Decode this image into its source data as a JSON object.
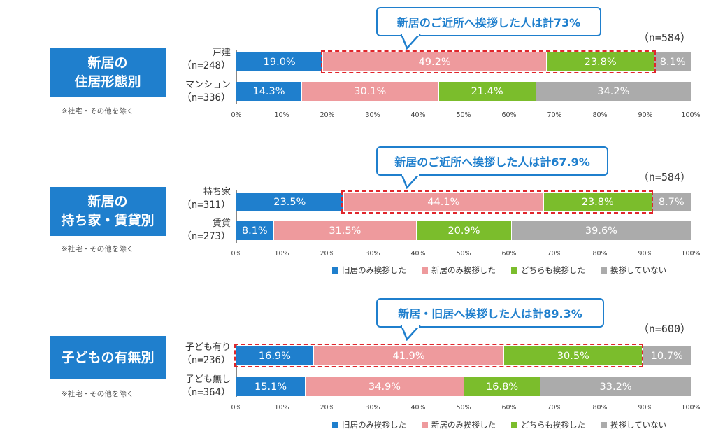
{
  "colors": {
    "old_only": "#1f7fcd",
    "new_only": "#ee9a9d",
    "both": "#7bbd2c",
    "none": "#ababab",
    "callout_border": "#1f7fcd",
    "highlight_dash": "#e0262c"
  },
  "legend": [
    "旧居のみ挨拶した",
    "新居のみ挨拶した",
    "どちらも挨拶した",
    "挨拶していない"
  ],
  "axis_ticks": [
    "0%",
    "10%",
    "20%",
    "30%",
    "40%",
    "50%",
    "60%",
    "70%",
    "80%",
    "90%",
    "100%"
  ],
  "chart_data": [
    {
      "type": "bar",
      "orientation": "horizontal-stacked",
      "title_lines": [
        "新居の",
        "住居形態別"
      ],
      "note": "※社宅・その他を除く",
      "n_total": "（n=584）",
      "callout": "新居のご近所へ挨拶した人は計73%",
      "categories": [
        {
          "name": "戸建",
          "n": "（n=248）"
        },
        {
          "name": "マンション",
          "n": "（n=336）"
        }
      ],
      "series": [
        {
          "name": "旧居のみ挨拶した",
          "values": [
            19.0,
            14.3
          ],
          "labels": [
            "19.0%",
            "14.3%"
          ]
        },
        {
          "name": "新居のみ挨拶した",
          "values": [
            49.2,
            30.1
          ],
          "labels": [
            "49.2%",
            "30.1%"
          ]
        },
        {
          "name": "どちらも挨拶した",
          "values": [
            23.8,
            21.4
          ],
          "labels": [
            "23.8%",
            "21.4%"
          ]
        },
        {
          "name": "挨拶していない",
          "values": [
            8.1,
            34.2
          ],
          "labels": [
            "8.1%",
            "34.2%"
          ]
        }
      ],
      "highlight": {
        "row": 0,
        "series": [
          1,
          2
        ]
      },
      "xlim": [
        0,
        100
      ],
      "legend_shown": false
    },
    {
      "type": "bar",
      "orientation": "horizontal-stacked",
      "title_lines": [
        "新居の",
        "持ち家・賃貸別"
      ],
      "note": "※社宅・その他を除く",
      "n_total": "（n=584）",
      "callout": "新居のご近所へ挨拶した人は計67.9%",
      "categories": [
        {
          "name": "持ち家",
          "n": "（n=311）"
        },
        {
          "name": "賃貸",
          "n": "（n=273）"
        }
      ],
      "series": [
        {
          "name": "旧居のみ挨拶した",
          "values": [
            23.5,
            8.1
          ],
          "labels": [
            "23.5%",
            "8.1%"
          ]
        },
        {
          "name": "新居のみ挨拶した",
          "values": [
            44.1,
            31.5
          ],
          "labels": [
            "44.1%",
            "31.5%"
          ]
        },
        {
          "name": "どちらも挨拶した",
          "values": [
            23.8,
            20.9
          ],
          "labels": [
            "23.8%",
            "20.9%"
          ]
        },
        {
          "name": "挨拶していない",
          "values": [
            8.7,
            39.6
          ],
          "labels": [
            "8.7%",
            "39.6%"
          ]
        }
      ],
      "highlight": {
        "row": 0,
        "series": [
          1,
          2
        ]
      },
      "xlim": [
        0,
        100
      ],
      "legend_shown": true
    },
    {
      "type": "bar",
      "orientation": "horizontal-stacked",
      "title_lines": [
        "子どもの有無別"
      ],
      "note": "※社宅・その他を除く",
      "n_total": "（n=600）",
      "callout": "新居・旧居へ挨拶した人は計89.3%",
      "categories": [
        {
          "name": "子ども有り",
          "n": "（n=236）"
        },
        {
          "name": "子ども無し",
          "n": "（n=364）"
        }
      ],
      "series": [
        {
          "name": "旧居のみ挨拶した",
          "values": [
            16.9,
            15.1
          ],
          "labels": [
            "16.9%",
            "15.1%"
          ]
        },
        {
          "name": "新居のみ挨拶した",
          "values": [
            41.9,
            34.9
          ],
          "labels": [
            "41.9%",
            "34.9%"
          ]
        },
        {
          "name": "どちらも挨拶した",
          "values": [
            30.5,
            16.8
          ],
          "labels": [
            "30.5%",
            "16.8%"
          ]
        },
        {
          "name": "挨拶していない",
          "values": [
            10.7,
            33.2
          ],
          "labels": [
            "10.7%",
            "33.2%"
          ]
        }
      ],
      "highlight": {
        "row": 0,
        "series": [
          0,
          1,
          2
        ]
      },
      "xlim": [
        0,
        100
      ],
      "legend_shown": true
    }
  ]
}
